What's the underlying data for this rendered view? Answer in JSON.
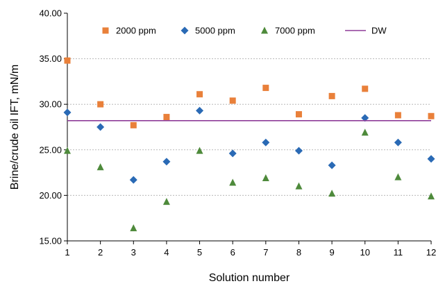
{
  "chart_data": {
    "type": "scatter",
    "xlabel": "Solution number",
    "ylabel": "Brine/crude oil IFT, mN/m",
    "xlim": [
      1,
      12
    ],
    "ylim": [
      15,
      40
    ],
    "x_ticks": [
      "1",
      "2",
      "3",
      "4",
      "5",
      "6",
      "7",
      "8",
      "9",
      "10",
      "11",
      "12"
    ],
    "y_ticks": [
      "15.00",
      "20.00",
      "25.00",
      "30.00",
      "35.00",
      "40.00"
    ],
    "grid": "horizontal dotted",
    "legend_position": "top",
    "x": [
      1,
      2,
      3,
      4,
      5,
      6,
      7,
      8,
      9,
      10,
      11,
      12
    ],
    "series": [
      {
        "name": "2000 ppm",
        "marker": "square",
        "color": "#E9803A",
        "values": [
          34.8,
          30.0,
          27.7,
          28.6,
          31.1,
          30.4,
          31.8,
          28.9,
          30.9,
          31.7,
          28.8,
          28.7
        ]
      },
      {
        "name": "5000 ppm",
        "marker": "diamond",
        "color": "#2A6AB5",
        "values": [
          29.1,
          27.5,
          21.7,
          23.7,
          29.3,
          24.6,
          25.8,
          24.9,
          23.3,
          28.5,
          25.8,
          24.0
        ]
      },
      {
        "name": "7000 ppm",
        "marker": "triangle",
        "color": "#4E8A3B",
        "values": [
          24.9,
          23.1,
          16.4,
          19.3,
          24.9,
          21.4,
          21.9,
          21.0,
          20.2,
          26.9,
          22.0,
          19.9
        ]
      },
      {
        "name": "DW",
        "marker": "line",
        "color": "#8E3C99",
        "values": [
          28.2,
          28.2,
          28.2,
          28.2,
          28.2,
          28.2,
          28.2,
          28.2,
          28.2,
          28.2,
          28.2,
          28.2
        ]
      }
    ]
  }
}
